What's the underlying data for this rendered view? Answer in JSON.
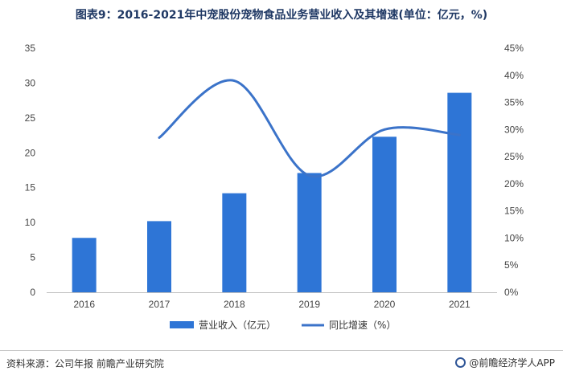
{
  "header": {
    "title": "图表9：2016-2021年中宠股份宠物食品业务营业收入及其增速(单位：亿元，%)"
  },
  "colors": {
    "bar": "#2e75d6",
    "line": "#3b73c9",
    "title": "#1f3864",
    "grid": "#d9d9d9"
  },
  "chart_data": {
    "type": "bar",
    "categories": [
      "2016",
      "2017",
      "2018",
      "2019",
      "2020",
      "2021"
    ],
    "series": [
      {
        "name": "营业收入（亿元）",
        "type": "bar",
        "axis": "left",
        "values": [
          7.8,
          10.2,
          14.2,
          17.1,
          22.3,
          28.6
        ]
      },
      {
        "name": "同比增速（%）",
        "type": "line",
        "axis": "right",
        "values": [
          null,
          28.5,
          39.0,
          21.5,
          30.0,
          29.0
        ]
      }
    ],
    "y_left": {
      "min": 0,
      "max": 35,
      "ticks": [
        "0",
        "5",
        "10",
        "15",
        "20",
        "25",
        "30",
        "35"
      ]
    },
    "y_right": {
      "min": 0,
      "max": 45,
      "ticks": [
        "0%",
        "5%",
        "10%",
        "15%",
        "20%",
        "25%",
        "30%",
        "35%",
        "40%",
        "45%"
      ]
    },
    "grid": false,
    "legend_position": "bottom"
  },
  "footer": {
    "source": "资料来源：公司年报 前瞻产业研究院",
    "brand": "@前瞻经济学人APP"
  }
}
